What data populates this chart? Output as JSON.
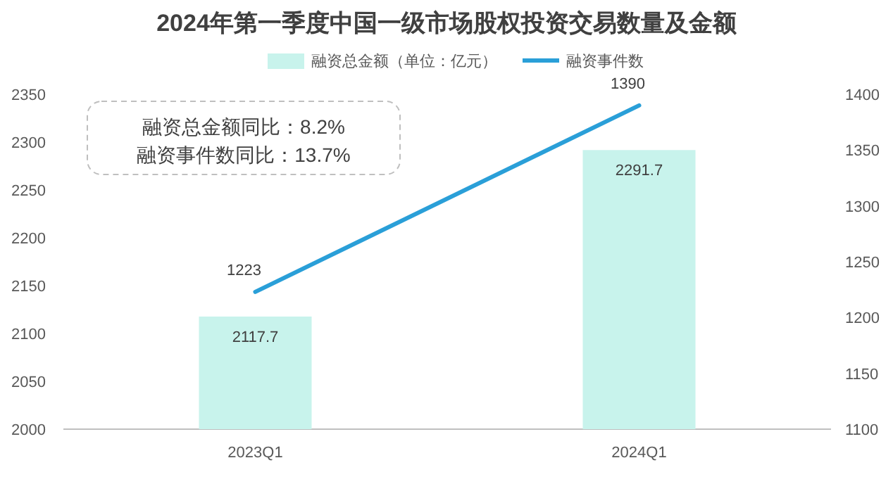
{
  "chart_data": {
    "type": "bar",
    "title": "2024年第一季度中国一级市场股权投资交易数量及金额",
    "categories": [
      "2023Q1",
      "2024Q1"
    ],
    "series": [
      {
        "name": "融资总金额（单位：亿元）",
        "color": "#c8f3ec",
        "values": [
          2117.7,
          2291.7
        ]
      },
      {
        "name": "融资事件数",
        "type": "line",
        "axis": "y2",
        "color": "#2a9fd8",
        "values": [
          1223,
          1390
        ]
      }
    ],
    "ylim": [
      2000,
      2350
    ],
    "yticks": [
      2000,
      2050,
      2100,
      2150,
      2200,
      2250,
      2300,
      2350
    ],
    "y2lim": [
      1100,
      1400
    ],
    "y2ticks": [
      1100,
      1150,
      1200,
      1250,
      1300,
      1350,
      1400
    ],
    "data_labels": true,
    "legend": "top",
    "grid": false,
    "annotations": [
      "融资总金额同比：8.2%",
      "融资事件数同比：13.7%"
    ]
  }
}
